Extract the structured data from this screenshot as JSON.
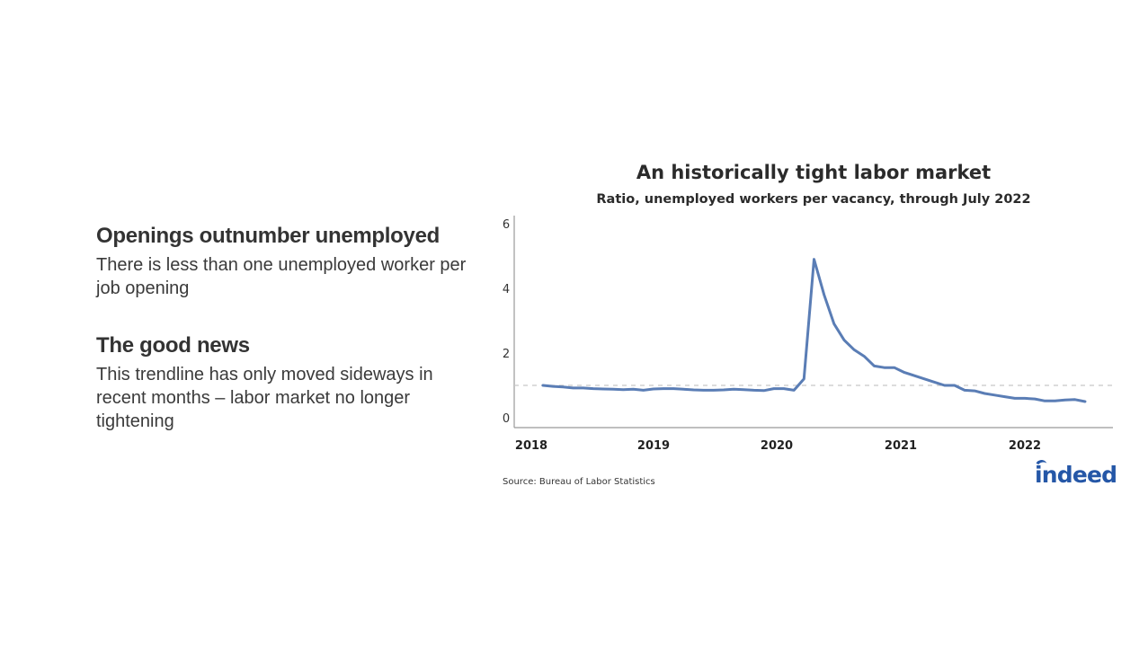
{
  "left_panel": {
    "sections": [
      {
        "heading": "Openings outnumber unemployed",
        "body_lines": [
          "There is less than one unemployed worker per",
          "job opening"
        ]
      },
      {
        "heading": "The good news",
        "body_lines": [
          "This trendline has only moved sideways in",
          "recent months – labor market no longer",
          "tightening"
        ]
      }
    ]
  },
  "chart": {
    "title": "An historically tight labor market",
    "subtitle": "Ratio, unemployed workers per vacancy, through July 2022",
    "source": "Source: Bureau of Labor Statistics",
    "logo_text": "indeed",
    "line_color": "#5a7db5",
    "reference_line_color": "#c8c8c8",
    "logo_color": "#2557a7"
  },
  "chart_data": {
    "type": "line",
    "title": "An historically tight labor market",
    "subtitle": "Ratio, unemployed workers per vacancy, through July 2022",
    "xlabel": "",
    "ylabel": "",
    "ylim": [
      0,
      6
    ],
    "yticks": [
      0,
      2,
      4,
      6
    ],
    "xticks": [
      "2018",
      "2019",
      "2020",
      "2021",
      "2022"
    ],
    "grid": false,
    "legend": null,
    "reference_line": {
      "y": 1.0,
      "style": "dashed"
    },
    "annotations": [
      "Source: Bureau of Labor Statistics"
    ],
    "x": [
      "2018-01",
      "2018-02",
      "2018-03",
      "2018-04",
      "2018-05",
      "2018-06",
      "2018-07",
      "2018-08",
      "2018-09",
      "2018-10",
      "2018-11",
      "2018-12",
      "2019-01",
      "2019-02",
      "2019-03",
      "2019-04",
      "2019-05",
      "2019-06",
      "2019-07",
      "2019-08",
      "2019-09",
      "2019-10",
      "2019-11",
      "2019-12",
      "2020-01",
      "2020-02",
      "2020-03",
      "2020-04",
      "2020-05",
      "2020-06",
      "2020-07",
      "2020-08",
      "2020-09",
      "2020-10",
      "2020-11",
      "2020-12",
      "2021-01",
      "2021-02",
      "2021-03",
      "2021-04",
      "2021-05",
      "2021-06",
      "2021-07",
      "2021-08",
      "2021-09",
      "2021-10",
      "2021-11",
      "2021-12",
      "2022-01",
      "2022-02",
      "2022-03",
      "2022-04",
      "2022-05",
      "2022-06",
      "2022-07"
    ],
    "series": [
      {
        "name": "Unemployed workers per vacancy",
        "values": [
          1.0,
          0.97,
          0.95,
          0.92,
          0.92,
          0.9,
          0.89,
          0.88,
          0.87,
          0.88,
          0.85,
          0.89,
          0.9,
          0.9,
          0.88,
          0.86,
          0.85,
          0.85,
          0.86,
          0.88,
          0.87,
          0.85,
          0.84,
          0.9,
          0.9,
          0.85,
          1.2,
          4.9,
          3.8,
          2.9,
          2.4,
          2.1,
          1.9,
          1.6,
          1.55,
          1.55,
          1.4,
          1.3,
          1.2,
          1.1,
          1.0,
          1.0,
          0.85,
          0.83,
          0.75,
          0.7,
          0.65,
          0.6,
          0.6,
          0.58,
          0.52,
          0.52,
          0.55,
          0.56,
          0.5
        ]
      }
    ]
  }
}
